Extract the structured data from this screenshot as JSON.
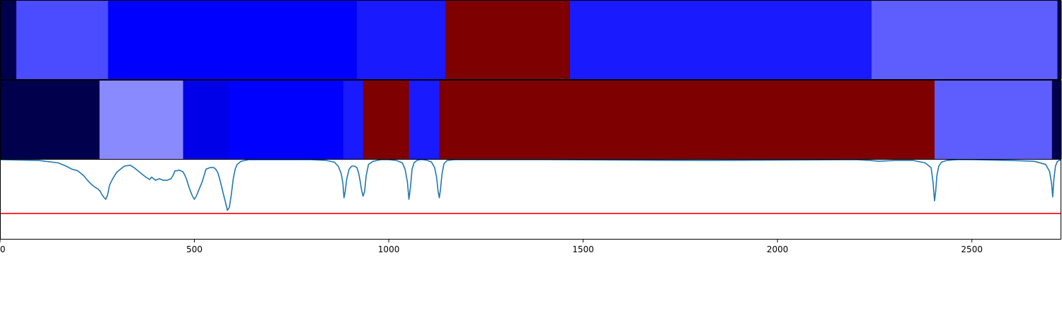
{
  "chart_data": {
    "type": "heatmap",
    "title": "",
    "xlabel": "",
    "ylabel": "",
    "xlim": [
      0,
      2730
    ],
    "ylim": [
      0,
      1
    ],
    "grid": false,
    "legend": "none",
    "xticks": [
      0,
      500,
      1000,
      1500,
      2000,
      2500
    ],
    "tick_labels": [
      "0",
      "500",
      "1000",
      "1500",
      "2000",
      "2500"
    ],
    "colormap": "seismic",
    "bands": [
      {
        "segments": [
          {
            "start": 0,
            "end": 42,
            "color": "#00004c"
          },
          {
            "start": 42,
            "end": 278,
            "color": "#4b4bff"
          },
          {
            "start": 278,
            "end": 918,
            "color": "#0000ff"
          },
          {
            "start": 918,
            "end": 1146,
            "color": "#1a1aff"
          },
          {
            "start": 1146,
            "end": 1466,
            "color": "#7f0000"
          },
          {
            "start": 1466,
            "end": 2242,
            "color": "#1a1aff"
          },
          {
            "start": 2242,
            "end": 2720,
            "color": "#5e5eff"
          },
          {
            "start": 2720,
            "end": 2730,
            "color": "#00004c"
          }
        ]
      },
      {
        "segments": [
          {
            "start": 0,
            "end": 256,
            "color": "#00004c"
          },
          {
            "start": 256,
            "end": 471,
            "color": "#8a8aff"
          },
          {
            "start": 471,
            "end": 588,
            "color": "#0000e8"
          },
          {
            "start": 588,
            "end": 883,
            "color": "#0000ff"
          },
          {
            "start": 883,
            "end": 934,
            "color": "#1a1aff"
          },
          {
            "start": 934,
            "end": 1052,
            "color": "#7f0000"
          },
          {
            "start": 1052,
            "end": 1130,
            "color": "#1a1aff"
          },
          {
            "start": 1130,
            "end": 2404,
            "color": "#7f0000"
          },
          {
            "start": 2404,
            "end": 2706,
            "color": "#5e5eff"
          },
          {
            "start": 2706,
            "end": 2730,
            "color": "#00004c"
          }
        ]
      }
    ],
    "series": [
      {
        "color": "#1f77b4",
        "x": [
          0,
          100,
          150,
          170,
          185,
          200,
          215,
          225,
          235,
          245,
          252,
          258,
          262,
          268,
          272,
          275,
          278,
          282,
          290,
          300,
          310,
          320,
          335,
          345,
          355,
          365,
          375,
          385,
          390,
          400,
          410,
          420,
          430,
          440,
          445,
          450,
          455,
          460,
          465,
          470,
          475,
          480,
          485,
          490,
          495,
          500,
          505,
          510,
          520,
          530,
          540,
          550,
          555,
          560,
          565,
          570,
          575,
          580,
          585,
          590,
          595,
          600,
          605,
          610,
          620,
          640,
          660,
          800,
          840,
          860,
          870,
          878,
          882,
          885,
          888,
          892,
          898,
          905,
          912,
          918,
          922,
          926,
          930,
          934,
          938,
          942,
          948,
          960,
          980,
          1000,
          1020,
          1035,
          1042,
          1048,
          1052,
          1056,
          1060,
          1065,
          1072,
          1080,
          1090,
          1100,
          1110,
          1118,
          1123,
          1127,
          1130,
          1133,
          1137,
          1142,
          1150,
          1170,
          1200,
          1400,
          1800,
          2200,
          2240,
          2260,
          2300,
          2350,
          2380,
          2395,
          2400,
          2404,
          2407,
          2410,
          2415,
          2422,
          2435,
          2460,
          2500,
          2600,
          2660,
          2690,
          2700,
          2705,
          2708,
          2711,
          2715,
          2720,
          2730
        ],
        "y": [
          1.0,
          0.99,
          0.96,
          0.92,
          0.88,
          0.86,
          0.8,
          0.74,
          0.69,
          0.65,
          0.63,
          0.6,
          0.56,
          0.52,
          0.5,
          0.53,
          0.58,
          0.68,
          0.76,
          0.84,
          0.88,
          0.92,
          0.93,
          0.9,
          0.86,
          0.82,
          0.78,
          0.75,
          0.78,
          0.74,
          0.76,
          0.74,
          0.74,
          0.76,
          0.8,
          0.86,
          0.86,
          0.87,
          0.86,
          0.85,
          0.81,
          0.75,
          0.67,
          0.6,
          0.54,
          0.5,
          0.54,
          0.6,
          0.72,
          0.88,
          0.9,
          0.9,
          0.88,
          0.84,
          0.76,
          0.66,
          0.56,
          0.46,
          0.36,
          0.4,
          0.56,
          0.76,
          0.88,
          0.94,
          0.98,
          1.0,
          1.0,
          1.0,
          0.99,
          0.97,
          0.92,
          0.82,
          0.7,
          0.52,
          0.6,
          0.76,
          0.88,
          0.92,
          0.92,
          0.9,
          0.84,
          0.74,
          0.62,
          0.54,
          0.6,
          0.8,
          0.94,
          0.98,
          1.0,
          1.0,
          0.99,
          0.96,
          0.88,
          0.72,
          0.5,
          0.66,
          0.88,
          0.96,
          0.99,
          1.0,
          1.0,
          0.99,
          0.97,
          0.9,
          0.78,
          0.6,
          0.52,
          0.62,
          0.82,
          0.95,
          0.99,
          1.0,
          1.0,
          1.0,
          0.99,
          1.0,
          0.99,
          0.98,
          0.99,
          0.99,
          0.96,
          0.9,
          0.72,
          0.48,
          0.6,
          0.8,
          0.92,
          0.97,
          0.99,
          1.0,
          1.0,
          0.99,
          0.98,
          0.94,
          0.85,
          0.7,
          0.53,
          0.76,
          0.92,
          0.98,
          1.0
        ]
      },
      {
        "color": "#ff0000",
        "x": [
          0,
          2730
        ],
        "y": [
          0.32,
          0.32
        ]
      }
    ]
  }
}
